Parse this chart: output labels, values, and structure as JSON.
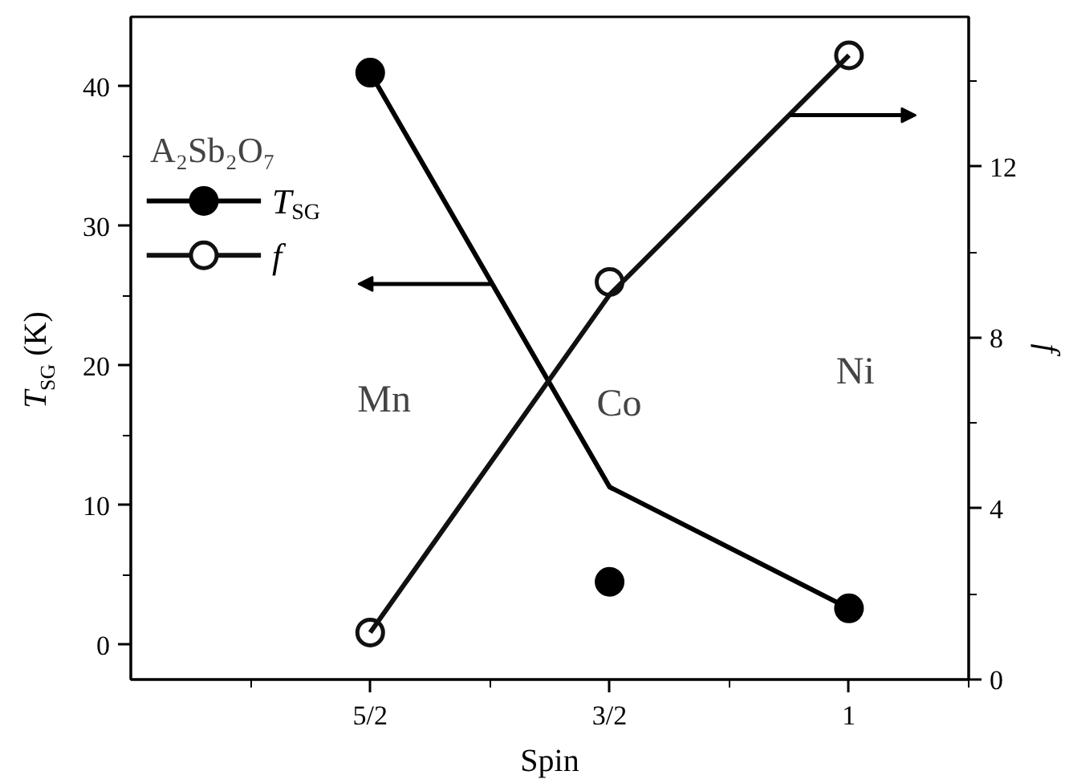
{
  "chart_data": {
    "type": "line",
    "xlabel": "Spin",
    "ylabel": "T$_{SG}$ (K)",
    "y2label": "f",
    "legend_title": "A₂Sb₂O₇",
    "legend": "top left",
    "categories": [
      "5/2",
      "3/2",
      "1"
    ],
    "ylim": [
      -2.5,
      45
    ],
    "yticks": [
      0,
      {
        "value": 5,
        "label": null
      },
      10,
      {
        "value": 15,
        "label": null
      },
      20,
      {
        "value": 25,
        "label": null
      },
      30,
      {
        "value": 35,
        "label": null
      },
      40
    ],
    "y2lim": [
      0,
      15.5
    ],
    "y2ticks": [
      0,
      {
        "value": 2,
        "label": null
      },
      4,
      {
        "value": 6,
        "label": null
      },
      8,
      {
        "value": 10,
        "label": null
      },
      12,
      {
        "value": 14,
        "label": null
      }
    ],
    "series": [
      {
        "name": "T$_{SG}$",
        "type": "scatter",
        "marker": "circle",
        "color": "#000000",
        "values": [
          41,
          4.5,
          2.6
        ]
      },
      {
        "color": "#000000",
        "values": [
          41,
          11.3,
          2.6
        ]
      },
      {
        "name": "f",
        "type": "scatter",
        "marker": "circle_open",
        "axis": "y2",
        "color": "#111111",
        "values": [
          1.1,
          9.3,
          14.6
        ]
      },
      {
        "axis": "y2",
        "color": "#111111",
        "values": [
          1.1,
          9.0,
          14.6
        ]
      }
    ],
    "annotations": [
      "Mn",
      "Co",
      "Ni"
    ]
  }
}
